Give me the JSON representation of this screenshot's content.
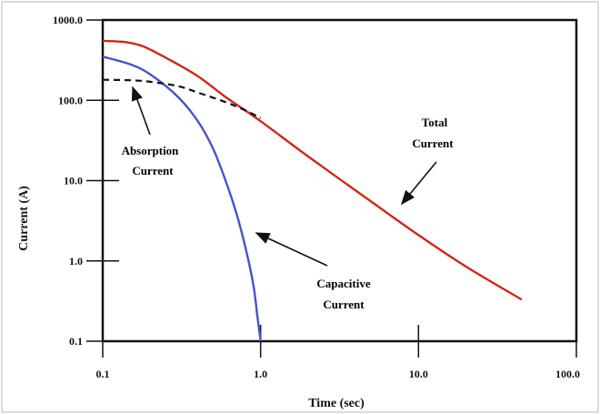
{
  "chart_data": {
    "type": "line",
    "title": "",
    "xlabel": "Time (sec)",
    "ylabel": "Current (A)",
    "x_scale": "log",
    "y_scale": "log",
    "xlim": [
      0.1,
      100
    ],
    "ylim": [
      0.1,
      1000
    ],
    "x_ticks": [
      "0.1",
      "1.0",
      "10.0",
      "100.0"
    ],
    "y_ticks": [
      "1000.0",
      "100.0",
      "10.0",
      "1.0",
      "0.1"
    ],
    "grid": false,
    "colors": {
      "total": "#cc2a14",
      "capacitive": "#4a52c8",
      "absorption": "#111111"
    },
    "series": [
      {
        "key": "total",
        "style": "solid",
        "x": [
          0.1,
          0.14,
          0.18,
          0.25,
          0.4,
          0.6,
          1.0,
          2,
          5,
          10,
          20,
          45
        ],
        "y": [
          550,
          530,
          470,
          340,
          200,
          110,
          55,
          20,
          5.5,
          2.1,
          0.85,
          0.33
        ]
      },
      {
        "key": "capacitive",
        "style": "solid",
        "x": [
          0.1,
          0.15,
          0.2,
          0.3,
          0.4,
          0.5,
          0.6,
          0.7,
          0.8,
          0.9,
          0.95,
          1.0
        ],
        "y": [
          350,
          280,
          210,
          110,
          55,
          25,
          10,
          4,
          1.5,
          0.5,
          0.22,
          0.1
        ]
      },
      {
        "key": "absorption",
        "style": "dashed",
        "x": [
          0.1,
          0.15,
          0.2,
          0.3,
          0.4,
          0.6,
          0.8,
          1.0
        ],
        "y": [
          180,
          178,
          170,
          150,
          125,
          95,
          75,
          60
        ]
      }
    ],
    "annotations": [
      {
        "key": "absorption",
        "lines": [
          "Absorption",
          "Current"
        ],
        "color": "#111111"
      },
      {
        "key": "total",
        "lines": [
          "Total",
          "Current"
        ],
        "color": "#cc2a14"
      },
      {
        "key": "capacitive",
        "lines": [
          "Capacitive",
          "Current"
        ],
        "color": "#4a52c8"
      }
    ]
  }
}
